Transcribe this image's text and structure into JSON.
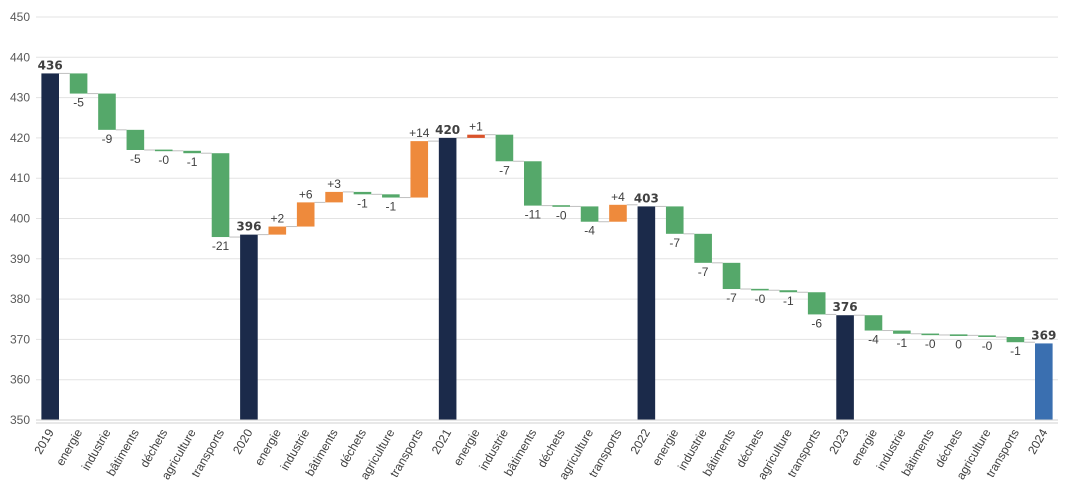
{
  "chart_data": {
    "type": "waterfall",
    "y_axis": {
      "min": 350,
      "max": 450,
      "step": 10,
      "grid": true
    },
    "colors": {
      "total": "#1b2a4a",
      "total_last": "#3a6fb0",
      "decrease": "#55a86a",
      "increase": "#ee8a3c",
      "increase_small": "#d9532b",
      "connector": "#bfbfbf",
      "grid": "#e3e3e3"
    },
    "bars": [
      {
        "category": "2019",
        "kind": "total",
        "value": 436,
        "label": "436"
      },
      {
        "category": "energie",
        "kind": "delta",
        "value": -5,
        "label": "-5"
      },
      {
        "category": "industrie",
        "kind": "delta",
        "value": -9,
        "label": "-9"
      },
      {
        "category": "bâtiments",
        "kind": "delta",
        "value": -5,
        "label": "-5"
      },
      {
        "category": "déchets",
        "kind": "delta",
        "value": -0.2,
        "label": "-0"
      },
      {
        "category": "agriculture",
        "kind": "delta",
        "value": -0.6,
        "label": "-1"
      },
      {
        "category": "transports",
        "kind": "delta",
        "value": -20.8,
        "label": "-21"
      },
      {
        "category": "2020",
        "kind": "total",
        "value": 396,
        "label": "396"
      },
      {
        "category": "energie",
        "kind": "delta",
        "value": 2,
        "label": "+2"
      },
      {
        "category": "industrie",
        "kind": "delta",
        "value": 6,
        "label": "+6"
      },
      {
        "category": "bâtiments",
        "kind": "delta",
        "value": 2.6,
        "label": "+3"
      },
      {
        "category": "déchets",
        "kind": "delta",
        "value": -0.6,
        "label": "-1"
      },
      {
        "category": "agriculture",
        "kind": "delta",
        "value": -0.8,
        "label": "-1"
      },
      {
        "category": "transports",
        "kind": "delta",
        "value": 14,
        "label": "+14"
      },
      {
        "category": "2021",
        "kind": "total",
        "value": 420,
        "label": "420"
      },
      {
        "category": "energie",
        "kind": "delta",
        "value": 0.8,
        "label": "+1"
      },
      {
        "category": "industrie",
        "kind": "delta",
        "value": -6.6,
        "label": "-7"
      },
      {
        "category": "bâtiments",
        "kind": "delta",
        "value": -11,
        "label": "-11"
      },
      {
        "category": "déchets",
        "kind": "delta",
        "value": -0.2,
        "label": "-0"
      },
      {
        "category": "agriculture",
        "kind": "delta",
        "value": -3.8,
        "label": "-4"
      },
      {
        "category": "transports",
        "kind": "delta",
        "value": 4.2,
        "label": "+4"
      },
      {
        "category": "2022",
        "kind": "total",
        "value": 403,
        "label": "403"
      },
      {
        "category": "energie",
        "kind": "delta",
        "value": -6.8,
        "label": "-7"
      },
      {
        "category": "industrie",
        "kind": "delta",
        "value": -7.2,
        "label": "-7"
      },
      {
        "category": "bâtiments",
        "kind": "delta",
        "value": -6.5,
        "label": "-7"
      },
      {
        "category": "déchets",
        "kind": "delta",
        "value": -0.3,
        "label": "-0"
      },
      {
        "category": "agriculture",
        "kind": "delta",
        "value": -0.5,
        "label": "-1"
      },
      {
        "category": "transports",
        "kind": "delta",
        "value": -5.5,
        "label": "-6"
      },
      {
        "category": "2023",
        "kind": "total",
        "value": 376,
        "label": "376"
      },
      {
        "category": "energie",
        "kind": "delta",
        "value": -3.8,
        "label": "-4"
      },
      {
        "category": "industrie",
        "kind": "delta",
        "value": -0.8,
        "label": "-1"
      },
      {
        "category": "bâtiments",
        "kind": "delta",
        "value": -0.3,
        "label": "-0"
      },
      {
        "category": "déchets",
        "kind": "delta",
        "value": -0.1,
        "label": "0"
      },
      {
        "category": "agriculture",
        "kind": "delta",
        "value": -0.4,
        "label": "-0"
      },
      {
        "category": "transports",
        "kind": "delta",
        "value": -1.3,
        "label": "-1"
      },
      {
        "category": "2024",
        "kind": "total",
        "value": 369,
        "label": "369"
      }
    ]
  }
}
